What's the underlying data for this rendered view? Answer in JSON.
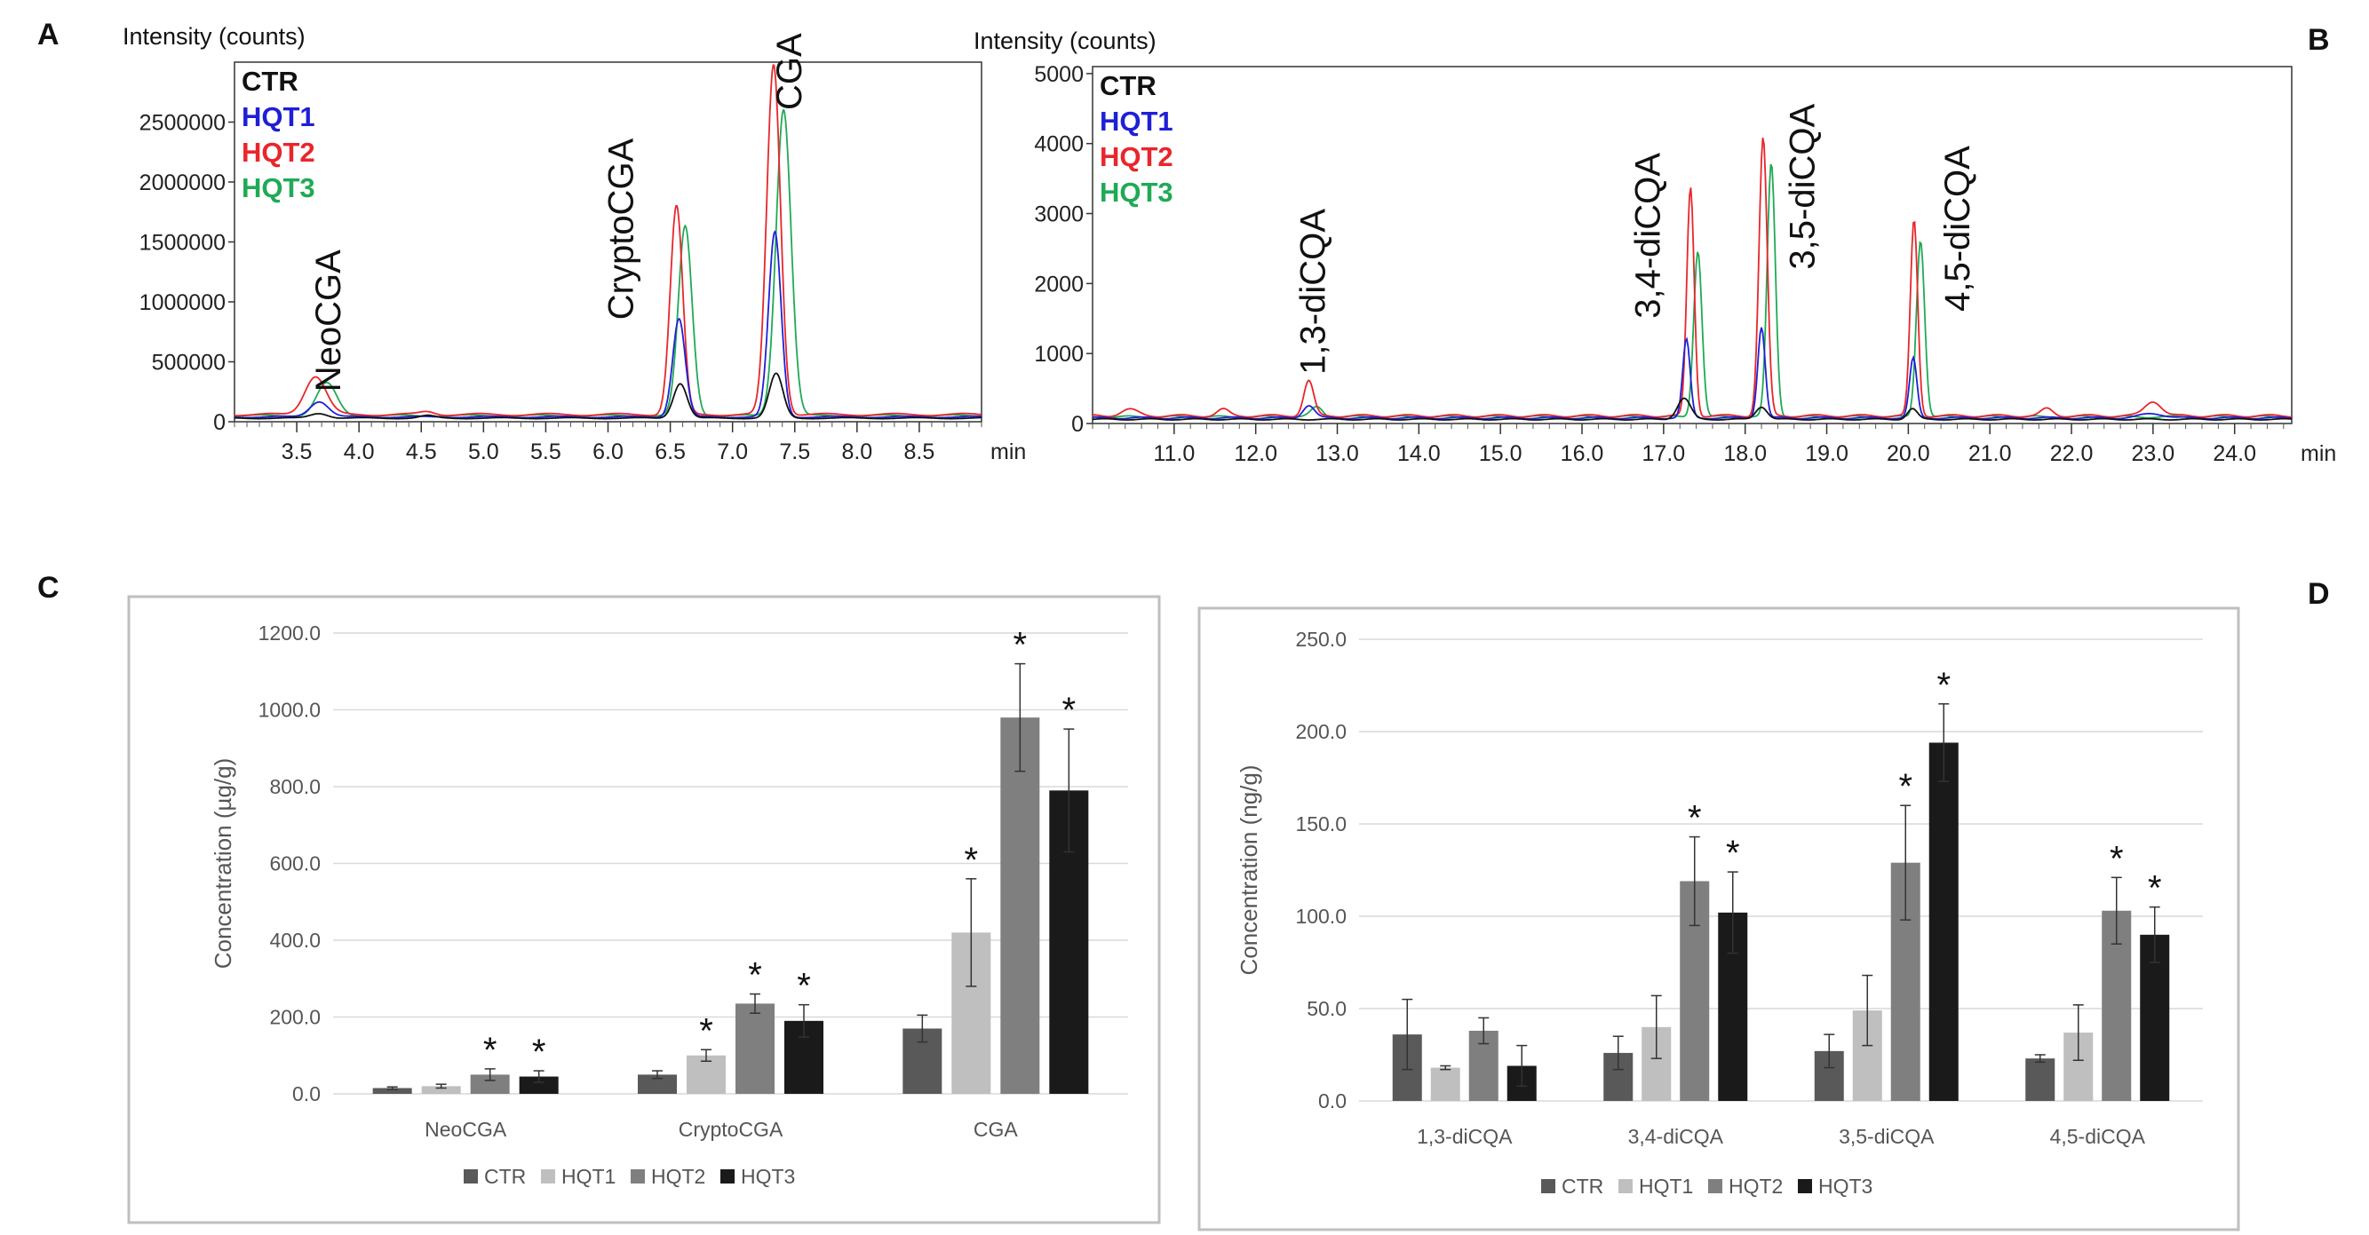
{
  "panels": {
    "a": "A",
    "b": "B",
    "c": "C",
    "d": "D"
  },
  "chart_data": [
    {
      "panel": "A",
      "type": "line",
      "ylabel": "Intensity (counts)",
      "xunit": "min",
      "xlim": [
        3.0,
        9.0
      ],
      "ylim": [
        0,
        3000000
      ],
      "yticks": [
        0,
        500000,
        1000000,
        1500000,
        2000000,
        2500000
      ],
      "xticks": [
        "3.5",
        "4.0",
        "4.5",
        "5.0",
        "5.5",
        "6.0",
        "6.5",
        "7.0",
        "7.5",
        "8.0",
        "8.5"
      ],
      "legend": [
        "CTR",
        "HQT1",
        "HQT2",
        "HQT3"
      ],
      "colors": {
        "CTR": "#111111",
        "HQT1": "#1f1fd6",
        "HQT2": "#e8262b",
        "HQT3": "#1faa55"
      },
      "baselines": {
        "CTR": 30000,
        "HQT1": 40000,
        "HQT2": 60000,
        "HQT3": 50000
      },
      "series": [
        {
          "name": "CTR",
          "peaks": [
            [
              3.68,
              40000,
              0.07
            ],
            [
              4.55,
              20000,
              0.06
            ],
            [
              6.58,
              290000,
              0.055
            ],
            [
              7.35,
              370000,
              0.055
            ]
          ]
        },
        {
          "name": "HQT1",
          "peaks": [
            [
              3.68,
              130000,
              0.075
            ],
            [
              6.57,
              820000,
              0.05
            ],
            [
              7.34,
              1540000,
              0.05
            ]
          ]
        },
        {
          "name": "HQT2",
          "peaks": [
            [
              3.65,
              320000,
              0.085
            ],
            [
              4.55,
              25000,
              0.06
            ],
            [
              6.55,
              1740000,
              0.05
            ],
            [
              7.33,
              2920000,
              0.055
            ]
          ]
        },
        {
          "name": "HQT3",
          "peaks": [
            [
              3.74,
              270000,
              0.08
            ],
            [
              6.62,
              1580000,
              0.055
            ],
            [
              7.41,
              2560000,
              0.06
            ]
          ]
        }
      ],
      "annotations": [
        {
          "text": "NeoCGA",
          "x": 3.85,
          "y": 250000
        },
        {
          "text": "CryptoCGA",
          "x": 6.2,
          "y": 850000
        },
        {
          "text": "CGA",
          "x": 7.55,
          "y": 2600000
        }
      ]
    },
    {
      "panel": "B",
      "type": "line",
      "ylabel": "Intensity (counts)",
      "xunit": "min",
      "xlim": [
        10.0,
        24.7
      ],
      "ylim": [
        0,
        5100
      ],
      "yticks": [
        0,
        1000,
        2000,
        3000,
        4000,
        5000
      ],
      "xticks": [
        "11.0",
        "12.0",
        "13.0",
        "14.0",
        "15.0",
        "16.0",
        "17.0",
        "18.0",
        "19.0",
        "20.0",
        "21.0",
        "22.0",
        "23.0",
        "24.0"
      ],
      "legend": [
        "CTR",
        "HQT1",
        "HQT2",
        "HQT3"
      ],
      "colors": {
        "CTR": "#111111",
        "HQT1": "#1f1fd6",
        "HQT2": "#e8262b",
        "HQT3": "#1faa55"
      },
      "baselines": {
        "CTR": 60,
        "HQT1": 80,
        "HQT2": 110,
        "HQT3": 95
      },
      "series": [
        {
          "name": "CTR",
          "peaks": [
            [
              17.25,
              300,
              0.08
            ],
            [
              18.2,
              180,
              0.07
            ],
            [
              20.05,
              150,
              0.06
            ]
          ]
        },
        {
          "name": "HQT1",
          "peaks": [
            [
              12.65,
              180,
              0.07
            ],
            [
              17.28,
              1120,
              0.045
            ],
            [
              18.2,
              1300,
              0.045
            ],
            [
              20.06,
              850,
              0.045
            ],
            [
              23.0,
              60,
              0.15
            ]
          ]
        },
        {
          "name": "HQT2",
          "peaks": [
            [
              10.45,
              90,
              0.1
            ],
            [
              11.6,
              90,
              0.07
            ],
            [
              12.65,
              500,
              0.06
            ],
            [
              17.33,
              3270,
              0.045
            ],
            [
              18.22,
              3980,
              0.05
            ],
            [
              20.07,
              2800,
              0.045
            ],
            [
              21.7,
              100,
              0.07
            ],
            [
              23.0,
              210,
              0.1
            ]
          ]
        },
        {
          "name": "HQT3",
          "peaks": [
            [
              12.75,
              140,
              0.07
            ],
            [
              17.42,
              2380,
              0.05
            ],
            [
              18.32,
              3630,
              0.05
            ],
            [
              20.15,
              2530,
              0.05
            ]
          ]
        }
      ],
      "annotations": [
        {
          "text": "1,3-diCQA",
          "x": 12.85,
          "y": 700
        },
        {
          "text": "3,4-diCQA",
          "x": 16.95,
          "y": 1500
        },
        {
          "text": "3,5-diCQA",
          "x": 18.85,
          "y": 2200
        },
        {
          "text": "4,5-diCQA",
          "x": 20.75,
          "y": 1600
        }
      ]
    },
    {
      "panel": "C",
      "type": "bar",
      "ylabel": "Concentration (µg/g)",
      "ylim": [
        0,
        1200
      ],
      "yticks": [
        "0.0",
        "200.0",
        "400.0",
        "600.0",
        "800.0",
        "1000.0",
        "1200.0"
      ],
      "categories": [
        "NeoCGA",
        "CryptoCGA",
        "CGA"
      ],
      "series": [
        {
          "name": "CTR",
          "color": "#595959",
          "values": [
            15,
            50,
            170
          ],
          "errors": [
            3,
            10,
            35
          ],
          "sig": [
            false,
            false,
            false
          ]
        },
        {
          "name": "HQT1",
          "color": "#bfbfbf",
          "values": [
            20,
            100,
            420
          ],
          "errors": [
            5,
            15,
            140
          ],
          "sig": [
            false,
            true,
            true
          ]
        },
        {
          "name": "HQT2",
          "color": "#7f7f7f",
          "values": [
            50,
            235,
            980
          ],
          "errors": [
            15,
            25,
            140
          ],
          "sig": [
            true,
            true,
            true
          ]
        },
        {
          "name": "HQT3",
          "color": "#1a1a1a",
          "values": [
            45,
            190,
            790
          ],
          "errors": [
            15,
            42,
            160
          ],
          "sig": [
            true,
            true,
            true
          ]
        }
      ],
      "legend": [
        "CTR",
        "HQT1",
        "HQT2",
        "HQT3"
      ],
      "significance_mark": "*"
    },
    {
      "panel": "D",
      "type": "bar",
      "ylabel": "Concentration (ng/g)",
      "ylim": [
        0,
        250
      ],
      "yticks": [
        "0.0",
        "50.0",
        "100.0",
        "150.0",
        "200.0",
        "250.0"
      ],
      "categories": [
        "1,3-diCQA",
        "3,4-diCQA",
        "3,5-diCQA",
        "4,5-diCQA"
      ],
      "series": [
        {
          "name": "CTR",
          "color": "#595959",
          "values": [
            36,
            26,
            27,
            23
          ],
          "errors": [
            19,
            9,
            9,
            2
          ],
          "sig": [
            false,
            false,
            false,
            false
          ]
        },
        {
          "name": "HQT1",
          "color": "#bfbfbf",
          "values": [
            18,
            40,
            49,
            37
          ],
          "errors": [
            1,
            17,
            19,
            15
          ],
          "sig": [
            false,
            false,
            false,
            false
          ]
        },
        {
          "name": "HQT2",
          "color": "#7f7f7f",
          "values": [
            38,
            119,
            129,
            103
          ],
          "errors": [
            7,
            24,
            31,
            18
          ],
          "sig": [
            false,
            true,
            true,
            true
          ]
        },
        {
          "name": "HQT3",
          "color": "#1a1a1a",
          "values": [
            19,
            102,
            194,
            90
          ],
          "errors": [
            11,
            22,
            21,
            15
          ],
          "sig": [
            false,
            true,
            true,
            true
          ]
        }
      ],
      "legend": [
        "CTR",
        "HQT1",
        "HQT2",
        "HQT3"
      ],
      "significance_mark": "*"
    }
  ]
}
